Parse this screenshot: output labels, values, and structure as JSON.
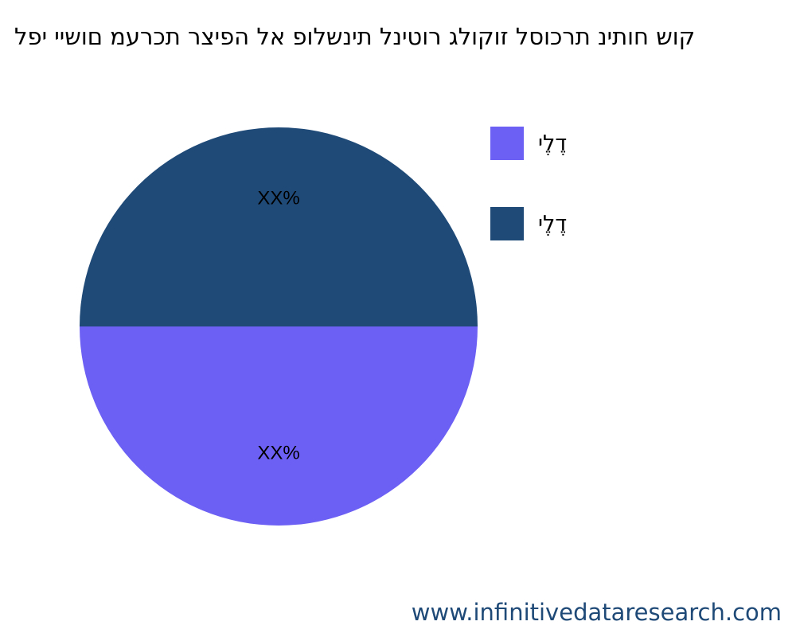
{
  "chart_data": {
    "type": "pie",
    "title": "קוש חותינ תרכוסל זוקולג רוטינל תינשלופ אל הפיצר תכרעמ םושיי יפל",
    "slices": [
      {
        "name": "דֶלֶי",
        "value": 50,
        "label": "XX%",
        "color": "#1f4a78"
      },
      {
        "name": "דֶלֶי",
        "value": 50,
        "label": "XX%",
        "color": "#6c5ff3"
      }
    ],
    "legend": [
      {
        "name": "דֶלֶי",
        "color": "#6c5ff3"
      },
      {
        "name": "דֶלֶי",
        "color": "#1f4a78"
      }
    ],
    "legend_position": "right"
  },
  "watermark": "www.infinitivedataresearch.com"
}
